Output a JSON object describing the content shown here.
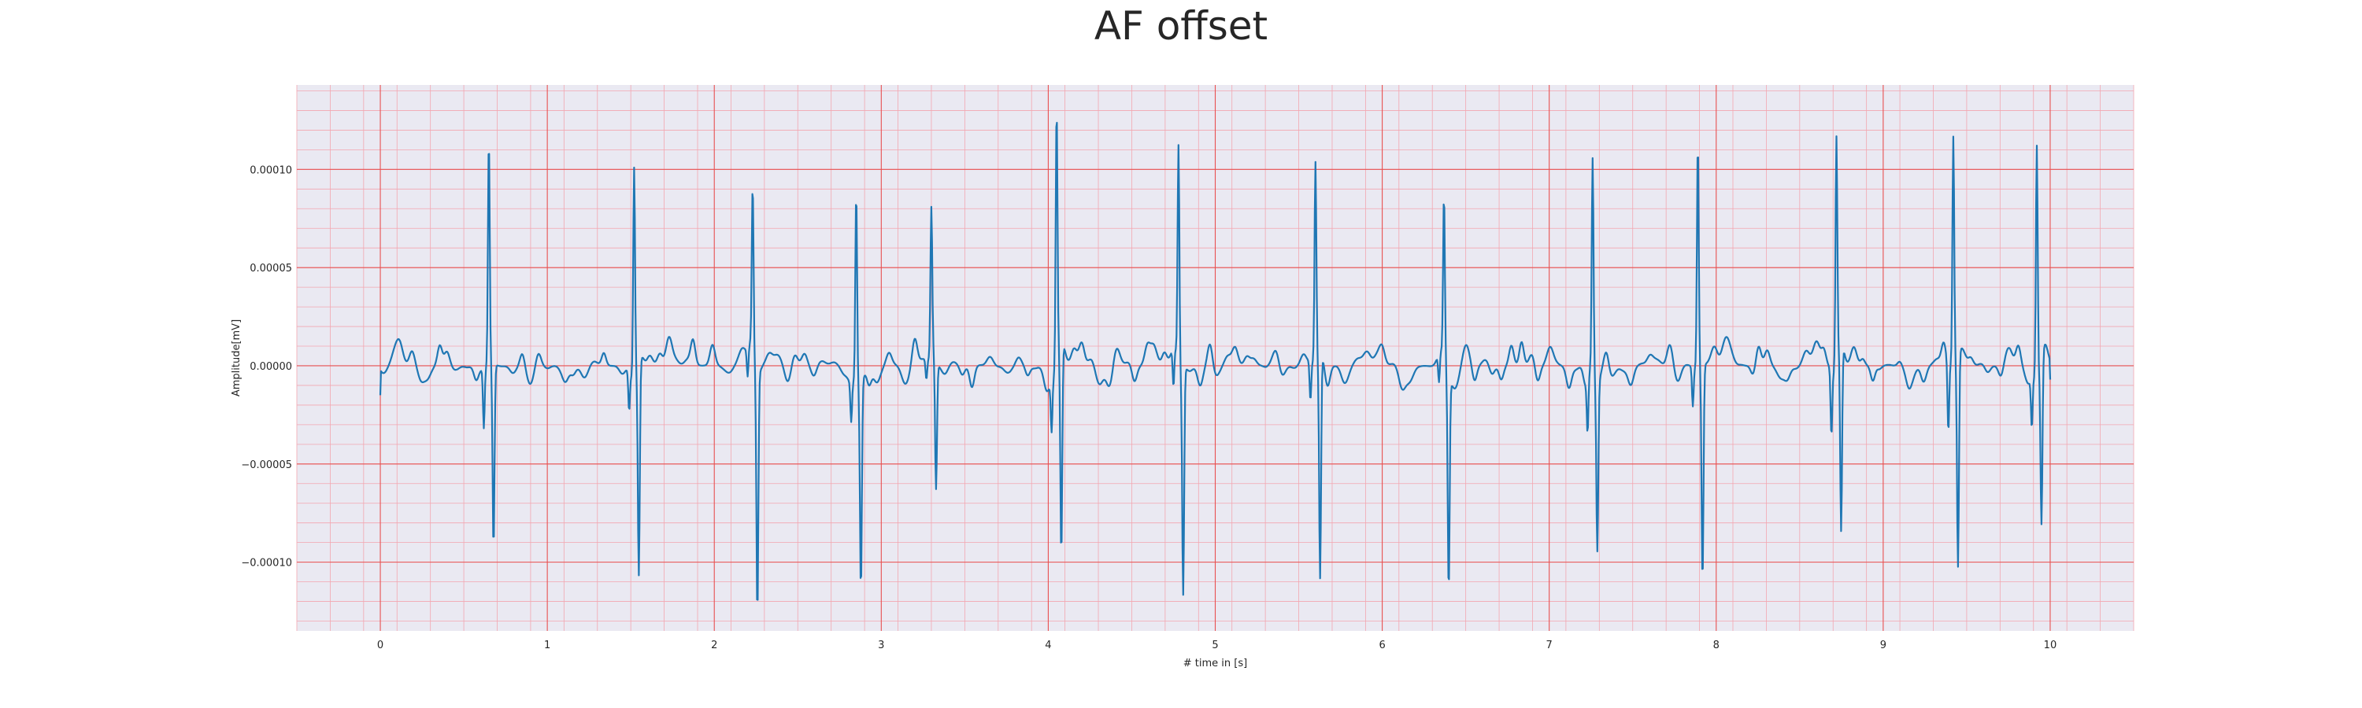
{
  "chart_data": {
    "type": "line",
    "title": "AF offset",
    "xlabel": "# time in [s]",
    "ylabel": "Amplitude[mV]",
    "xlim": [
      -0.5,
      10.5
    ],
    "ylim": [
      -0.000135,
      0.000143
    ],
    "xticks": [
      0,
      1,
      2,
      3,
      4,
      5,
      6,
      7,
      8,
      9,
      10
    ],
    "xtick_labels": [
      "0",
      "1",
      "2",
      "3",
      "4",
      "5",
      "6",
      "7",
      "8",
      "9",
      "10"
    ],
    "yticks": [
      -0.0001,
      -5e-05,
      0.0,
      5e-05,
      0.0001
    ],
    "ytick_labels": [
      "−0.00010",
      "−0.00005",
      "0.00000",
      "0.00005",
      "0.00010"
    ],
    "grid": true,
    "major_grid_color": "#e85050",
    "minor_grid_color": "#f3a6b0",
    "background_color": "#eae9f2",
    "line_color": "#1f77b4",
    "series": [
      {
        "beats": [
          {
            "t": 0.65,
            "r": 0.000116,
            "s": -9.3e-05,
            "q": -3e-05
          },
          {
            "t": 1.52,
            "r": 0.000107,
            "s": -0.000107,
            "q": -2e-05
          },
          {
            "t": 2.23,
            "r": 8.6e-05,
            "s": -0.000122,
            "q": -1.5e-05
          },
          {
            "t": 2.85,
            "r": 9.8e-05,
            "s": -0.000103,
            "q": -2e-05
          },
          {
            "t": 3.3,
            "r": 7.4e-05,
            "s": -6.6e-05,
            "q": -1e-05
          },
          {
            "t": 4.05,
            "r": 0.000131,
            "s": -0.000109,
            "q": -2.5e-05
          },
          {
            "t": 4.78,
            "r": 0.000113,
            "s": -0.000113,
            "q": -2e-05
          },
          {
            "t": 5.6,
            "r": 0.000102,
            "s": -0.000115,
            "q": -2e-05
          },
          {
            "t": 6.37,
            "r": 8.4e-05,
            "s": -0.000108,
            "q": -1.5e-05
          },
          {
            "t": 7.26,
            "r": 0.000109,
            "s": -8.5e-05,
            "q": -2.8e-05
          },
          {
            "t": 7.89,
            "r": 0.000115,
            "s": -0.00011,
            "q": -2e-05
          },
          {
            "t": 8.72,
            "r": 0.000116,
            "s": -9.7e-05,
            "q": -3.3e-05
          },
          {
            "t": 9.42,
            "r": 0.000116,
            "s": -0.000108,
            "q": -3.5e-05
          },
          {
            "t": 9.92,
            "r": 0.00012,
            "s": -8.4e-05,
            "q": -2.5e-05
          }
        ],
        "t_start": 0.0,
        "t_end": 10.0,
        "start_value": -1.5e-05,
        "end_value": -7e-06
      }
    ]
  }
}
